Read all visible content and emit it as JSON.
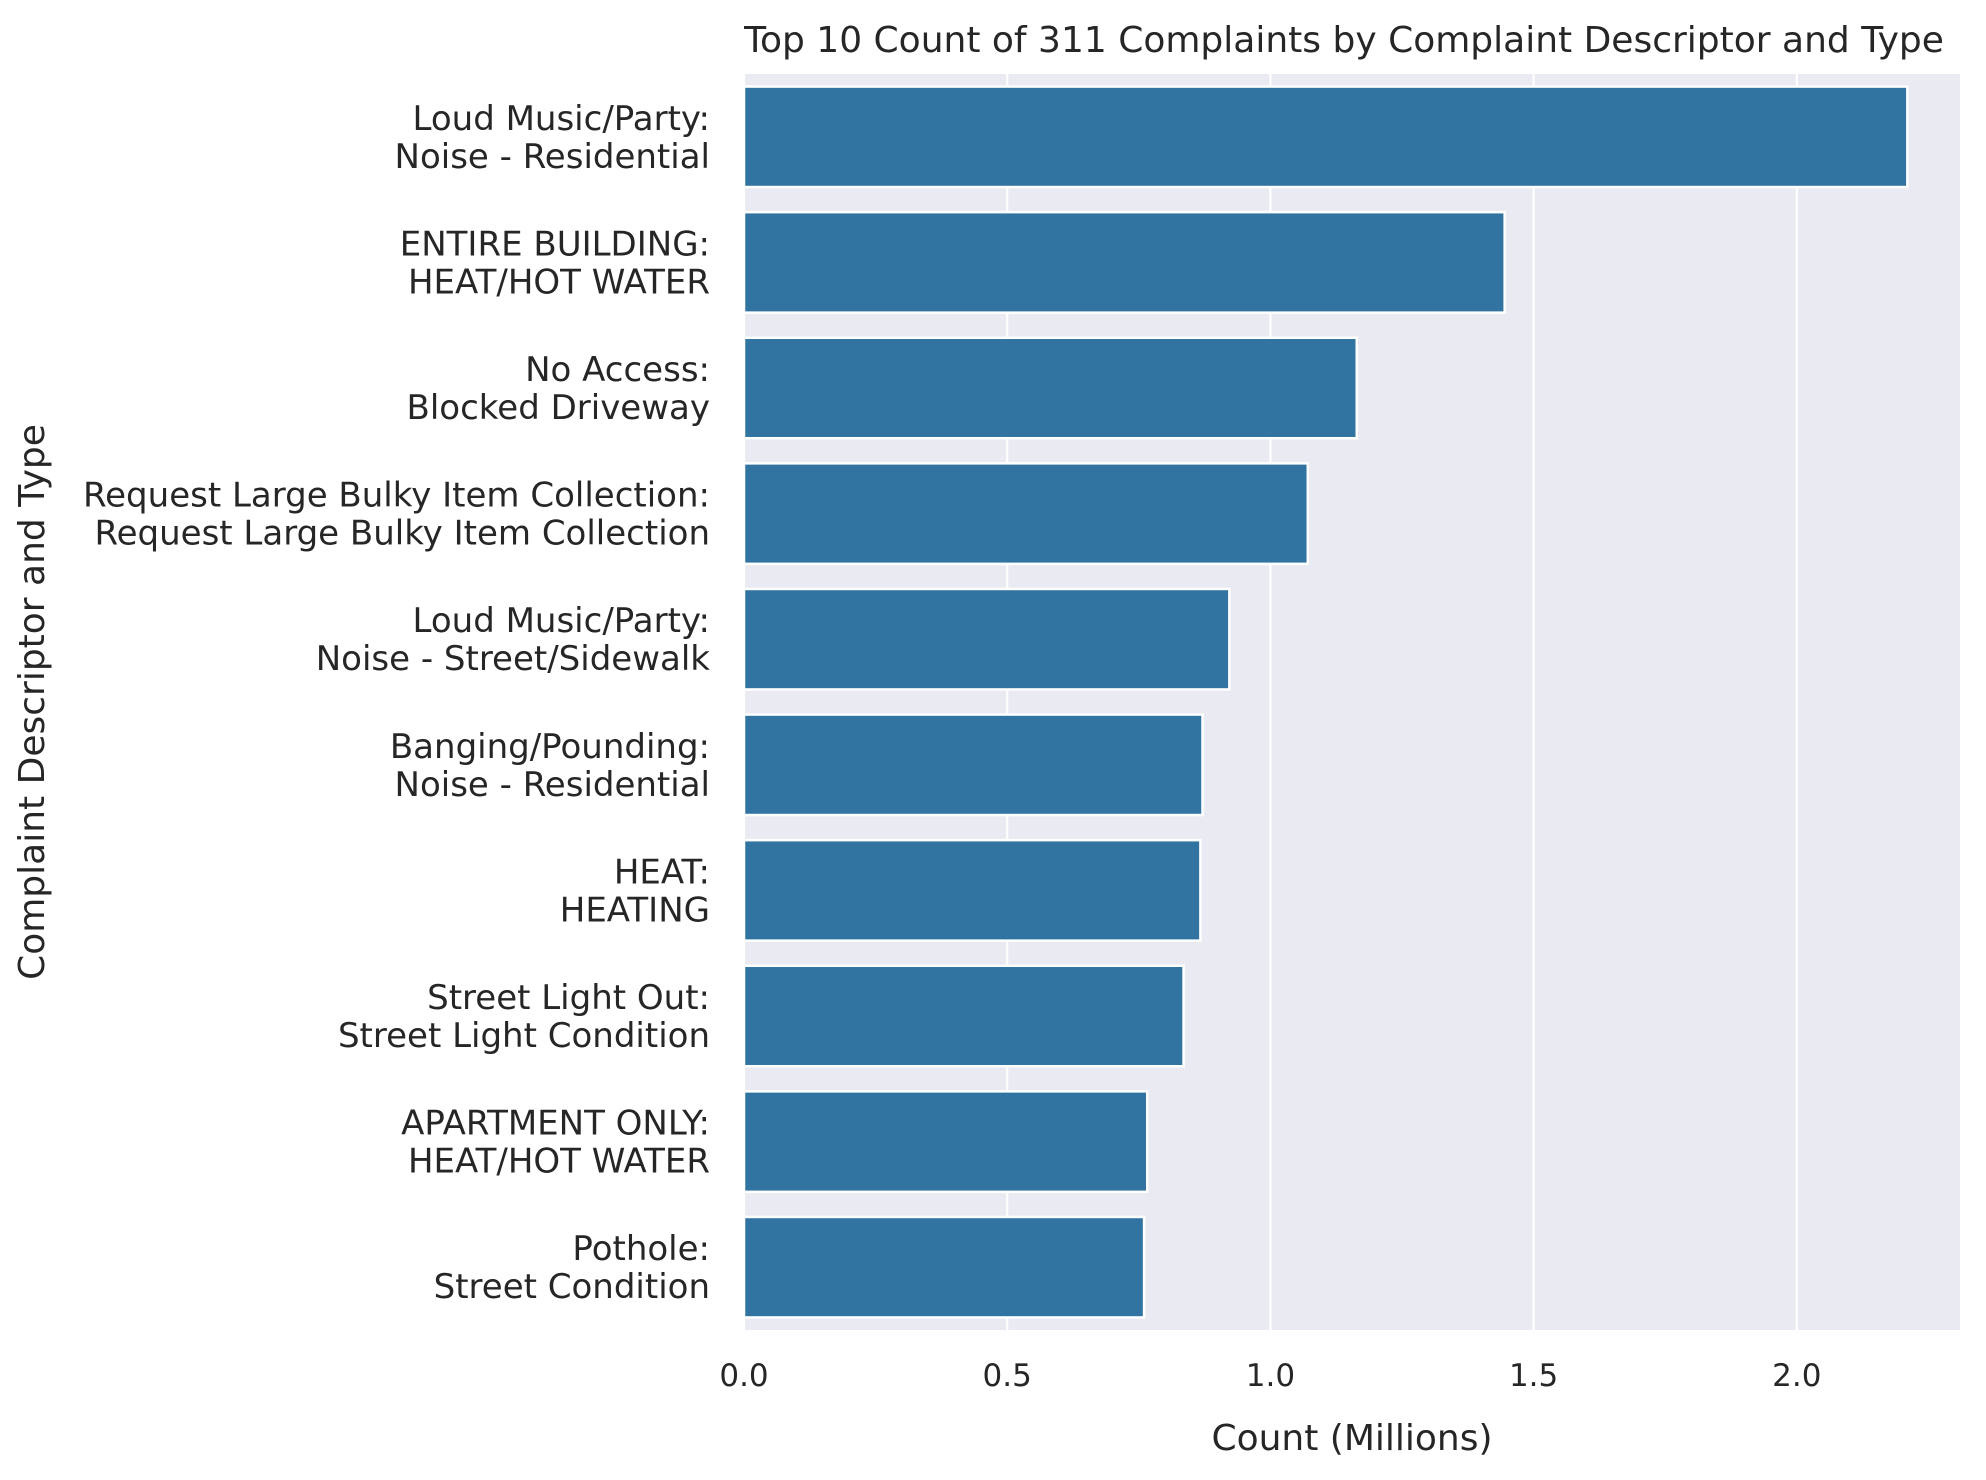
{
  "chart_data": {
    "type": "bar",
    "orientation": "horizontal",
    "title": "Top 10 Count of 311 Complaints by Complaint Descriptor and Type",
    "xlabel": "Count (Millions)",
    "ylabel": "Complaint Descriptor and Type",
    "xlim": [
      0,
      2.31
    ],
    "xticks": [
      0.0,
      0.5,
      1.0,
      1.5,
      2.0
    ],
    "xtick_labels": [
      "0.0",
      "0.5",
      "1.0",
      "1.5",
      "2.0"
    ],
    "grid": true,
    "categories": [
      [
        "Loud Music/Party:",
        "Noise - Residential"
      ],
      [
        "ENTIRE BUILDING:",
        "HEAT/HOT WATER"
      ],
      [
        "No Access:",
        "Blocked Driveway"
      ],
      [
        "Request Large Bulky Item Collection:",
        "Request Large Bulky Item Collection"
      ],
      [
        "Loud Music/Party:",
        "Noise - Street/Sidewalk"
      ],
      [
        "Banging/Pounding:",
        "Noise - Residential"
      ],
      [
        "HEAT:",
        "HEATING"
      ],
      [
        "Street Light Out:",
        "Street Light Condition"
      ],
      [
        "APARTMENT ONLY:",
        "HEAT/HOT WATER"
      ],
      [
        "Pothole:",
        "Street Condition"
      ]
    ],
    "values": [
      2.21,
      1.445,
      1.164,
      1.071,
      0.922,
      0.871,
      0.867,
      0.835,
      0.766,
      0.76
    ],
    "colors": {
      "bar": "#3274a1",
      "plot_background": "#eaeaf2",
      "grid": "#ffffff",
      "text": "#262626"
    }
  }
}
